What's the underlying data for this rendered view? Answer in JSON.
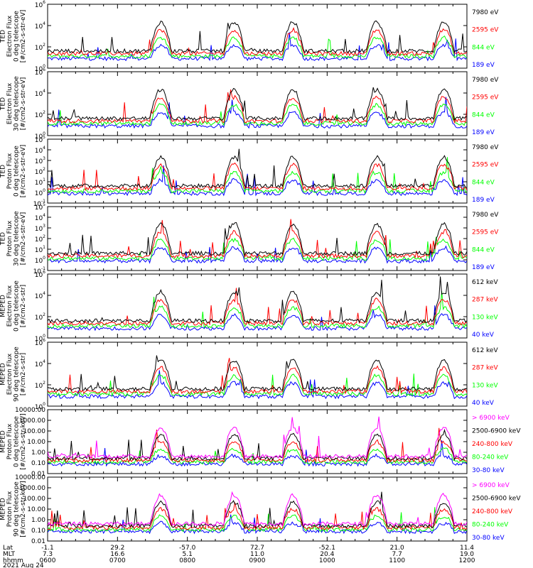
{
  "colors": {
    "blue": "#0000ff",
    "red": "#ff0000",
    "green": "#00ff00",
    "black": "#000000",
    "magenta": "#ff00ff",
    "white": "#ffffff"
  },
  "chart_data": {
    "type": "line",
    "date": "2021 Aug 24",
    "x_ticks": [
      {
        "lat": "-1.1",
        "mlt": "7.3",
        "hhmm": "0600"
      },
      {
        "lat": "29.2",
        "mlt": "16.6",
        "hhmm": "0700"
      },
      {
        "lat": "-57.0",
        "mlt": "5.1",
        "hhmm": "0800"
      },
      {
        "lat": "72.7",
        "mlt": "11.0",
        "hhmm": "0900"
      },
      {
        "lat": "-52.1",
        "mlt": "20.4",
        "hhmm": "1000"
      },
      {
        "lat": "21.0",
        "mlt": "7.7",
        "hhmm": "1100"
      },
      {
        "lat": "11.4",
        "mlt": "19.0",
        "hhmm": "1200"
      }
    ],
    "axis_row_labels": [
      "Lat",
      "MLT",
      "hhmm"
    ],
    "panels": [
      {
        "name": "ted-electron-0",
        "ylabel": [
          "TED",
          "Electron Flux",
          "0 deg telescope",
          "[#/cm2-s-str-eV]"
        ],
        "yticks": [
          {
            "v": 0,
            "t": "10"
          },
          {
            "v": 2,
            "t": "10"
          },
          {
            "v": 4,
            "t": "10"
          },
          {
            "v": 6,
            "t": "10"
          }
        ],
        "ytick_exp": [
          "0",
          "2",
          "4",
          "6"
        ],
        "ylim": [
          0,
          6
        ],
        "legend": [
          {
            "label": "7980 eV",
            "color": "black"
          },
          {
            "label": "2595 eV",
            "color": "red"
          },
          {
            "label": "844 eV",
            "color": "green"
          },
          {
            "label": "189 eV",
            "color": "blue"
          }
        ]
      },
      {
        "name": "ted-electron-30",
        "ylabel": [
          "TED",
          "Electron Flux",
          "30 deg telescope",
          "[#/cm2-s-str-eV]"
        ],
        "yticks": [
          {
            "v": 0,
            "t": "10"
          },
          {
            "v": 2,
            "t": "10"
          },
          {
            "v": 4,
            "t": "10"
          },
          {
            "v": 6,
            "t": "10"
          }
        ],
        "ytick_exp": [
          "0",
          "2",
          "4",
          "6"
        ],
        "ylim": [
          0,
          6
        ],
        "legend": [
          {
            "label": "7980 eV",
            "color": "black"
          },
          {
            "label": "2595 eV",
            "color": "red"
          },
          {
            "label": "844 eV",
            "color": "green"
          },
          {
            "label": "189 eV",
            "color": "blue"
          }
        ]
      },
      {
        "name": "ted-proton-0",
        "ylabel": [
          "TED",
          "Proton Flux",
          "0 deg telescope",
          "[#/cm2-s-str-eV]"
        ],
        "yticks": [
          {
            "v": -1,
            "t": "10"
          },
          {
            "v": 0,
            "t": "10"
          },
          {
            "v": 1,
            "t": "10"
          },
          {
            "v": 2,
            "t": "10"
          },
          {
            "v": 3,
            "t": "10"
          },
          {
            "v": 4,
            "t": "10"
          },
          {
            "v": 5,
            "t": "10"
          }
        ],
        "ytick_exp": [
          "-1",
          "0",
          "1",
          "2",
          "3",
          "4",
          "5"
        ],
        "ylim": [
          -1,
          5
        ],
        "legend": [
          {
            "label": "7980 eV",
            "color": "black"
          },
          {
            "label": "2595 eV",
            "color": "red"
          },
          {
            "label": "844 eV",
            "color": "green"
          },
          {
            "label": "189 eV",
            "color": "blue"
          }
        ]
      },
      {
        "name": "ted-proton-30",
        "ylabel": [
          "TED",
          "Proton Flux",
          "30 deg telescope",
          "[#/cm2-s-str-eV]"
        ],
        "yticks": [
          {
            "v": -1,
            "t": "10"
          },
          {
            "v": 0,
            "t": "10"
          },
          {
            "v": 1,
            "t": "10"
          },
          {
            "v": 2,
            "t": "10"
          },
          {
            "v": 3,
            "t": "10"
          },
          {
            "v": 4,
            "t": "10"
          },
          {
            "v": 5,
            "t": "10"
          }
        ],
        "ytick_exp": [
          "-1",
          "0",
          "1",
          "2",
          "3",
          "4",
          "5"
        ],
        "ylim": [
          -1,
          5
        ],
        "legend": [
          {
            "label": "7980 eV",
            "color": "black"
          },
          {
            "label": "2595 eV",
            "color": "red"
          },
          {
            "label": "844 eV",
            "color": "green"
          },
          {
            "label": "189 eV",
            "color": "blue"
          }
        ]
      },
      {
        "name": "meped-electron-0",
        "ylabel": [
          "MEPED",
          "Electron Flux",
          "0 deg telescope",
          "[#/cm2-s-str]"
        ],
        "yticks": [
          {
            "v": 0,
            "t": "10"
          },
          {
            "v": 2,
            "t": "10"
          },
          {
            "v": 4,
            "t": "10"
          },
          {
            "v": 6,
            "t": "10"
          }
        ],
        "ytick_exp": [
          "0",
          "2",
          "4",
          "6"
        ],
        "ylim": [
          0,
          6
        ],
        "legend": [
          {
            "label": "612 keV",
            "color": "black"
          },
          {
            "label": "287 keV",
            "color": "red"
          },
          {
            "label": "130 keV",
            "color": "green"
          },
          {
            "label": "40 keV",
            "color": "blue"
          }
        ]
      },
      {
        "name": "meped-electron-90",
        "ylabel": [
          "MEPED",
          "Electron Flux",
          "90 deg telescope",
          "[#/cm2-s-str]"
        ],
        "yticks": [
          {
            "v": 0,
            "t": "10"
          },
          {
            "v": 2,
            "t": "10"
          },
          {
            "v": 4,
            "t": "10"
          },
          {
            "v": 6,
            "t": "10"
          }
        ],
        "ytick_exp": [
          "0",
          "2",
          "4",
          "6"
        ],
        "ylim": [
          0,
          6
        ],
        "legend": [
          {
            "label": "612 keV",
            "color": "black"
          },
          {
            "label": "287 keV",
            "color": "red"
          },
          {
            "label": "130 keV",
            "color": "green"
          },
          {
            "label": "40 keV",
            "color": "blue"
          }
        ]
      },
      {
        "name": "meped-proton-0",
        "ylabel": [
          "MEPED",
          "Proton Flux",
          "0 deg telescope",
          "[#/cm2-s-str-keV]"
        ],
        "yticks": [
          {
            "v": -2,
            "t": "0.01"
          },
          {
            "v": -1,
            "t": "0.10"
          },
          {
            "v": 0,
            "t": "1.00"
          },
          {
            "v": 1,
            "t": "10.00"
          },
          {
            "v": 2,
            "t": "100.00"
          },
          {
            "v": 3,
            "t": "1000.00"
          },
          {
            "v": 4,
            "t": "10000.00"
          }
        ],
        "ytick_exp": [],
        "ylim": [
          -2,
          4
        ],
        "legend": [
          {
            "label": "> 6900 keV",
            "color": "magenta"
          },
          {
            "label": "2500-6900 keV",
            "color": "black"
          },
          {
            "label": "240-800 keV",
            "color": "red"
          },
          {
            "label": "80-240 keV",
            "color": "green"
          },
          {
            "label": "30-80 keV",
            "color": "blue"
          }
        ]
      },
      {
        "name": "meped-proton-90",
        "ylabel": [
          "MEPED",
          "Proton Flux",
          "90 deg telescope",
          "[#/cm2-s-str-keV]"
        ],
        "yticks": [
          {
            "v": -2,
            "t": "0.01"
          },
          {
            "v": -1,
            "t": "0.10"
          },
          {
            "v": 0,
            "t": "1.00"
          },
          {
            "v": 1,
            "t": "10.00"
          },
          {
            "v": 2,
            "t": "100.00"
          },
          {
            "v": 3,
            "t": "1000.00"
          },
          {
            "v": 4,
            "t": "10000.00"
          }
        ],
        "ytick_exp": [],
        "ylim": [
          -2,
          4
        ],
        "legend": [
          {
            "label": "> 6900 keV",
            "color": "magenta"
          },
          {
            "label": "2500-6900 keV",
            "color": "black"
          },
          {
            "label": "240-800 keV",
            "color": "red"
          },
          {
            "label": "80-240 keV",
            "color": "green"
          },
          {
            "label": "30-80 keV",
            "color": "blue"
          }
        ]
      }
    ]
  }
}
